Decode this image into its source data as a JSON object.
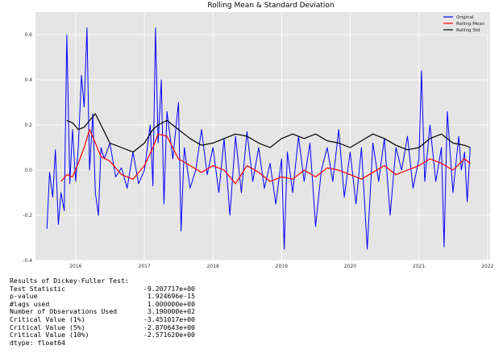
{
  "chart_data": {
    "type": "line",
    "title": "Rolling Mean & Standard Deviation",
    "xlabel": "",
    "ylabel": "",
    "xlim": [
      "2015-06-01",
      "2022-01-15"
    ],
    "ylim": [
      -0.4,
      0.7
    ],
    "x_ticks": [
      "2016",
      "2017",
      "2018",
      "2019",
      "2020",
      "2021",
      "2022"
    ],
    "y_ticks": [
      "-0.4",
      "-0.2",
      "0.0",
      "0.2",
      "0.4",
      "0.6"
    ],
    "grid": true,
    "legend_position": "top-right",
    "series": [
      {
        "name": "Original",
        "color": "#0000ff",
        "points": [
          [
            "2015-08-01",
            -0.26
          ],
          [
            "2015-08-15",
            -0.01
          ],
          [
            "2015-09-01",
            -0.12
          ],
          [
            "2015-09-15",
            0.09
          ],
          [
            "2015-10-01",
            -0.24
          ],
          [
            "2015-10-15",
            -0.1
          ],
          [
            "2015-11-01",
            -0.18
          ],
          [
            "2015-11-15",
            0.6
          ],
          [
            "2015-12-01",
            -0.06
          ],
          [
            "2015-12-15",
            0.18
          ],
          [
            "2016-01-01",
            -0.05
          ],
          [
            "2016-01-15",
            0.1
          ],
          [
            "2016-02-01",
            0.42
          ],
          [
            "2016-02-15",
            0.28
          ],
          [
            "2016-03-01",
            0.63
          ],
          [
            "2016-03-15",
            0.0
          ],
          [
            "2016-04-01",
            0.25
          ],
          [
            "2016-04-15",
            -0.1
          ],
          [
            "2016-05-01",
            -0.2
          ],
          [
            "2016-05-15",
            0.1
          ],
          [
            "2016-06-01",
            0.05
          ],
          [
            "2016-07-01",
            0.12
          ],
          [
            "2016-08-01",
            -0.03
          ],
          [
            "2016-09-01",
            0.01
          ],
          [
            "2016-10-01",
            -0.08
          ],
          [
            "2016-11-01",
            0.08
          ],
          [
            "2016-12-01",
            -0.06
          ],
          [
            "2017-01-01",
            0.0
          ],
          [
            "2017-02-01",
            0.2
          ],
          [
            "2017-02-15",
            -0.07
          ],
          [
            "2017-03-01",
            0.63
          ],
          [
            "2017-03-15",
            0.12
          ],
          [
            "2017-04-01",
            0.4
          ],
          [
            "2017-04-15",
            -0.15
          ],
          [
            "2017-05-01",
            0.26
          ],
          [
            "2017-06-01",
            0.05
          ],
          [
            "2017-07-01",
            0.3
          ],
          [
            "2017-07-15",
            -0.27
          ],
          [
            "2017-08-01",
            0.1
          ],
          [
            "2017-09-01",
            -0.08
          ],
          [
            "2017-10-01",
            0.0
          ],
          [
            "2017-11-01",
            0.18
          ],
          [
            "2017-12-01",
            -0.02
          ],
          [
            "2018-01-01",
            0.1
          ],
          [
            "2018-02-01",
            -0.1
          ],
          [
            "2018-03-01",
            0.14
          ],
          [
            "2018-04-01",
            -0.2
          ],
          [
            "2018-05-01",
            0.15
          ],
          [
            "2018-06-01",
            -0.1
          ],
          [
            "2018-07-01",
            0.17
          ],
          [
            "2018-08-01",
            -0.05
          ],
          [
            "2018-09-01",
            0.1
          ],
          [
            "2018-10-01",
            -0.08
          ],
          [
            "2018-11-01",
            0.03
          ],
          [
            "2018-12-01",
            -0.15
          ],
          [
            "2019-01-01",
            0.05
          ],
          [
            "2019-01-15",
            -0.35
          ],
          [
            "2019-02-01",
            0.08
          ],
          [
            "2019-03-01",
            -0.1
          ],
          [
            "2019-04-01",
            0.15
          ],
          [
            "2019-05-01",
            -0.05
          ],
          [
            "2019-06-01",
            0.12
          ],
          [
            "2019-07-01",
            -0.25
          ],
          [
            "2019-08-01",
            0.0
          ],
          [
            "2019-09-01",
            0.1
          ],
          [
            "2019-10-01",
            -0.05
          ],
          [
            "2019-11-01",
            0.18
          ],
          [
            "2019-12-01",
            -0.12
          ],
          [
            "2020-01-01",
            0.08
          ],
          [
            "2020-02-01",
            -0.15
          ],
          [
            "2020-03-01",
            0.1
          ],
          [
            "2020-04-01",
            -0.35
          ],
          [
            "2020-05-01",
            0.12
          ],
          [
            "2020-06-01",
            -0.05
          ],
          [
            "2020-07-01",
            0.14
          ],
          [
            "2020-08-01",
            -0.2
          ],
          [
            "2020-09-01",
            0.1
          ],
          [
            "2020-10-01",
            0.0
          ],
          [
            "2020-11-01",
            0.15
          ],
          [
            "2020-12-01",
            -0.08
          ],
          [
            "2021-01-01",
            0.05
          ],
          [
            "2021-01-15",
            0.44
          ],
          [
            "2021-02-01",
            -0.05
          ],
          [
            "2021-03-01",
            0.2
          ],
          [
            "2021-04-01",
            -0.05
          ],
          [
            "2021-05-01",
            0.1
          ],
          [
            "2021-05-15",
            -0.34
          ],
          [
            "2021-06-01",
            0.26
          ],
          [
            "2021-07-01",
            -0.1
          ],
          [
            "2021-08-01",
            0.15
          ],
          [
            "2021-08-15",
            0.0
          ],
          [
            "2021-09-01",
            0.08
          ],
          [
            "2021-09-15",
            -0.14
          ],
          [
            "2021-10-01",
            0.1
          ]
        ]
      },
      {
        "name": "Rolling Mean",
        "color": "#ff0000",
        "points": [
          [
            "2015-10-15",
            -0.05
          ],
          [
            "2015-11-15",
            -0.02
          ],
          [
            "2015-12-15",
            -0.03
          ],
          [
            "2016-01-15",
            0.03
          ],
          [
            "2016-02-15",
            0.1
          ],
          [
            "2016-03-15",
            0.18
          ],
          [
            "2016-04-15",
            0.12
          ],
          [
            "2016-05-15",
            0.06
          ],
          [
            "2016-07-01",
            0.04
          ],
          [
            "2016-09-01",
            -0.02
          ],
          [
            "2016-11-01",
            -0.04
          ],
          [
            "2017-01-01",
            0.02
          ],
          [
            "2017-02-15",
            0.1
          ],
          [
            "2017-03-15",
            0.16
          ],
          [
            "2017-05-01",
            0.15
          ],
          [
            "2017-07-01",
            0.05
          ],
          [
            "2017-09-01",
            0.02
          ],
          [
            "2017-11-01",
            -0.01
          ],
          [
            "2018-01-01",
            0.02
          ],
          [
            "2018-03-01",
            0.0
          ],
          [
            "2018-05-01",
            -0.06
          ],
          [
            "2018-07-01",
            0.02
          ],
          [
            "2018-09-01",
            -0.01
          ],
          [
            "2018-11-01",
            -0.05
          ],
          [
            "2019-01-01",
            -0.03
          ],
          [
            "2019-03-01",
            -0.04
          ],
          [
            "2019-05-01",
            0.0
          ],
          [
            "2019-07-01",
            -0.03
          ],
          [
            "2019-09-01",
            0.01
          ],
          [
            "2019-11-01",
            0.0
          ],
          [
            "2020-01-01",
            -0.02
          ],
          [
            "2020-03-01",
            -0.04
          ],
          [
            "2020-05-01",
            -0.01
          ],
          [
            "2020-07-01",
            0.02
          ],
          [
            "2020-09-01",
            -0.02
          ],
          [
            "2020-11-01",
            0.0
          ],
          [
            "2021-01-01",
            0.02
          ],
          [
            "2021-03-01",
            0.05
          ],
          [
            "2021-05-01",
            0.03
          ],
          [
            "2021-07-01",
            0.0
          ],
          [
            "2021-09-01",
            0.05
          ],
          [
            "2021-10-01",
            0.03
          ]
        ]
      },
      {
        "name": "Rolling Std",
        "color": "#000000",
        "points": [
          [
            "2015-11-15",
            0.22
          ],
          [
            "2015-12-15",
            0.21
          ],
          [
            "2016-01-15",
            0.18
          ],
          [
            "2016-02-15",
            0.19
          ],
          [
            "2016-03-15",
            0.22
          ],
          [
            "2016-04-15",
            0.25
          ],
          [
            "2016-05-15",
            0.2
          ],
          [
            "2016-07-01",
            0.12
          ],
          [
            "2016-09-01",
            0.1
          ],
          [
            "2016-11-01",
            0.08
          ],
          [
            "2017-01-01",
            0.12
          ],
          [
            "2017-02-15",
            0.18
          ],
          [
            "2017-03-15",
            0.2
          ],
          [
            "2017-05-01",
            0.22
          ],
          [
            "2017-07-01",
            0.18
          ],
          [
            "2017-09-01",
            0.14
          ],
          [
            "2017-11-01",
            0.11
          ],
          [
            "2018-01-01",
            0.12
          ],
          [
            "2018-03-01",
            0.14
          ],
          [
            "2018-05-01",
            0.16
          ],
          [
            "2018-07-01",
            0.15
          ],
          [
            "2018-09-01",
            0.12
          ],
          [
            "2018-11-01",
            0.1
          ],
          [
            "2019-01-01",
            0.14
          ],
          [
            "2019-03-01",
            0.16
          ],
          [
            "2019-05-01",
            0.14
          ],
          [
            "2019-07-01",
            0.16
          ],
          [
            "2019-09-01",
            0.13
          ],
          [
            "2019-11-01",
            0.12
          ],
          [
            "2020-01-01",
            0.1
          ],
          [
            "2020-03-01",
            0.13
          ],
          [
            "2020-05-01",
            0.16
          ],
          [
            "2020-07-01",
            0.14
          ],
          [
            "2020-09-01",
            0.11
          ],
          [
            "2020-11-01",
            0.09
          ],
          [
            "2021-01-01",
            0.1
          ],
          [
            "2021-03-01",
            0.14
          ],
          [
            "2021-05-01",
            0.16
          ],
          [
            "2021-07-01",
            0.12
          ],
          [
            "2021-09-01",
            0.11
          ],
          [
            "2021-10-01",
            0.1
          ]
        ]
      }
    ]
  },
  "stats": {
    "header": "Results of Dickey-Fuller Test:",
    "rows": [
      {
        "label": "Test Statistic",
        "value": "-9.207717e+00"
      },
      {
        "label": "p-value",
        "value": "1.924696e-15"
      },
      {
        "label": "#lags used",
        "value": "1.000000e+00"
      },
      {
        "label": "Number of Observations Used",
        "value": "3.190000e+02"
      },
      {
        "label": "Critical Value (1%)",
        "value": "-3.451017e+00"
      },
      {
        "label": "Critical Value (5%)",
        "value": "-2.870643e+00"
      },
      {
        "label": "Critical Value (10%)",
        "value": "-2.571620e+00"
      }
    ],
    "footer": "dtype: float64"
  }
}
